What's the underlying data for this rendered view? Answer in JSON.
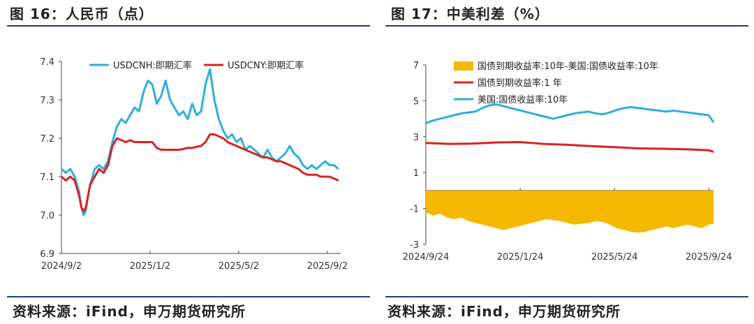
{
  "left": {
    "title": "图 16：人民币（点）",
    "source": "资料来源：iFind，申万期货研究所"
  },
  "right": {
    "title": "图 17：中美利差（%）",
    "source": "资料来源：iFind，申万期货研究所"
  },
  "chart_data": [
    {
      "type": "line",
      "title": "人民币（点）",
      "xlabel": "",
      "ylabel": "",
      "ylim": [
        6.9,
        7.4
      ],
      "yticks": [
        6.9,
        7.0,
        7.1,
        7.2,
        7.3,
        7.4
      ],
      "ytick_labels": [
        "6.9",
        "7.0",
        "7.1",
        "7.2",
        "7.3",
        "7.4"
      ],
      "xlim": [
        0,
        12.6
      ],
      "xticks": [
        0,
        4,
        8,
        12
      ],
      "xtick_labels": [
        "2024/9/2",
        "2025/1/2",
        "2025/5/2",
        "2025/9/2"
      ],
      "legend": "top",
      "series": [
        {
          "name": "USDCNH:即期汇率",
          "color": "#2eaee0",
          "x": [
            0,
            0.2,
            0.4,
            0.6,
            0.8,
            0.9,
            1.0,
            1.1,
            1.2,
            1.3,
            1.5,
            1.7,
            1.9,
            2.1,
            2.3,
            2.5,
            2.7,
            2.9,
            3.1,
            3.3,
            3.5,
            3.7,
            3.9,
            4.1,
            4.3,
            4.5,
            4.7,
            4.9,
            5.1,
            5.3,
            5.5,
            5.7,
            5.9,
            6.1,
            6.3,
            6.5,
            6.7,
            6.9,
            7.1,
            7.3,
            7.5,
            7.7,
            7.9,
            8.1,
            8.3,
            8.5,
            8.7,
            8.9,
            9.1,
            9.3,
            9.5,
            9.7,
            9.9,
            10.1,
            10.3,
            10.5,
            10.7,
            10.9,
            11.1,
            11.3,
            11.5,
            11.7,
            11.9,
            12.1,
            12.3,
            12.5
          ],
          "values": [
            7.12,
            7.11,
            7.12,
            7.1,
            7.06,
            7.02,
            7.0,
            7.01,
            7.05,
            7.08,
            7.12,
            7.13,
            7.12,
            7.14,
            7.19,
            7.23,
            7.25,
            7.24,
            7.26,
            7.28,
            7.27,
            7.32,
            7.35,
            7.34,
            7.29,
            7.31,
            7.35,
            7.3,
            7.28,
            7.26,
            7.27,
            7.25,
            7.29,
            7.26,
            7.27,
            7.34,
            7.38,
            7.3,
            7.25,
            7.22,
            7.2,
            7.21,
            7.19,
            7.2,
            7.17,
            7.18,
            7.17,
            7.16,
            7.15,
            7.17,
            7.15,
            7.14,
            7.15,
            7.16,
            7.18,
            7.16,
            7.15,
            7.13,
            7.12,
            7.13,
            7.12,
            7.13,
            7.14,
            7.13,
            7.13,
            7.12
          ]
        },
        {
          "name": "USDCNY:即期汇率",
          "color": "#d8231c",
          "x": [
            0,
            0.2,
            0.4,
            0.6,
            0.8,
            0.9,
            1.0,
            1.1,
            1.2,
            1.3,
            1.5,
            1.7,
            1.9,
            2.1,
            2.3,
            2.5,
            2.7,
            2.9,
            3.1,
            3.3,
            3.5,
            3.7,
            3.9,
            4.1,
            4.3,
            4.5,
            4.7,
            4.9,
            5.1,
            5.3,
            5.5,
            5.7,
            5.9,
            6.1,
            6.3,
            6.5,
            6.7,
            6.9,
            7.1,
            7.3,
            7.5,
            7.7,
            7.9,
            8.1,
            8.3,
            8.5,
            8.7,
            8.9,
            9.1,
            9.3,
            9.5,
            9.7,
            9.9,
            10.1,
            10.3,
            10.5,
            10.7,
            10.9,
            11.1,
            11.3,
            11.5,
            11.7,
            11.9,
            12.1,
            12.3,
            12.5
          ],
          "values": [
            7.1,
            7.09,
            7.1,
            7.09,
            7.05,
            7.02,
            7.01,
            7.02,
            7.05,
            7.08,
            7.1,
            7.12,
            7.11,
            7.13,
            7.18,
            7.2,
            7.195,
            7.19,
            7.195,
            7.19,
            7.19,
            7.19,
            7.19,
            7.19,
            7.175,
            7.17,
            7.17,
            7.17,
            7.17,
            7.17,
            7.172,
            7.175,
            7.175,
            7.178,
            7.18,
            7.19,
            7.21,
            7.21,
            7.205,
            7.2,
            7.19,
            7.185,
            7.18,
            7.175,
            7.17,
            7.165,
            7.16,
            7.155,
            7.15,
            7.15,
            7.145,
            7.14,
            7.14,
            7.135,
            7.13,
            7.125,
            7.12,
            7.11,
            7.105,
            7.105,
            7.105,
            7.1,
            7.1,
            7.1,
            7.095,
            7.09
          ]
        }
      ]
    },
    {
      "type": "line",
      "title": "中美利差（%）",
      "xlabel": "",
      "ylabel": "",
      "ylim": [
        -3,
        7
      ],
      "yticks": [
        -3,
        -1,
        1,
        3,
        5,
        7
      ],
      "ytick_labels": [
        "-3",
        "-1",
        "1",
        "3",
        "5",
        "7"
      ],
      "xlim": [
        0,
        12.2
      ],
      "xticks": [
        0,
        4,
        8,
        12
      ],
      "xtick_labels": [
        "2024/9/24",
        "2025/1/24",
        "2025/5/24",
        "2025/9/24"
      ],
      "legend": "top-left",
      "series": [
        {
          "name": "国债到期收益率:10年-美国:国债收益率:10年",
          "kind": "area",
          "color": "#f5b800",
          "x": [
            0,
            0.3,
            0.6,
            0.9,
            1.2,
            1.5,
            1.8,
            2.1,
            2.4,
            2.7,
            3.0,
            3.3,
            3.6,
            3.9,
            4.2,
            4.5,
            4.8,
            5.1,
            5.4,
            5.7,
            6.0,
            6.3,
            6.6,
            6.9,
            7.2,
            7.5,
            7.8,
            8.1,
            8.4,
            8.7,
            9.0,
            9.3,
            9.6,
            9.9,
            10.2,
            10.5,
            10.8,
            11.1,
            11.4,
            11.7,
            12.0,
            12.2
          ],
          "values": [
            -1.2,
            -1.4,
            -1.3,
            -1.5,
            -1.6,
            -1.5,
            -1.7,
            -1.8,
            -1.9,
            -2.0,
            -2.1,
            -2.2,
            -2.1,
            -2.0,
            -1.9,
            -1.8,
            -1.7,
            -1.6,
            -1.65,
            -1.7,
            -1.8,
            -1.9,
            -1.85,
            -1.8,
            -1.7,
            -1.75,
            -1.9,
            -2.1,
            -2.2,
            -2.3,
            -2.35,
            -2.3,
            -2.2,
            -2.1,
            -2.0,
            -2.1,
            -2.0,
            -1.9,
            -2.0,
            -2.1,
            -1.9,
            -1.85
          ]
        },
        {
          "name": "国债到期收益率:1 年",
          "color": "#d8231c",
          "x": [
            0,
            1,
            2,
            3,
            4,
            5,
            6,
            7,
            8,
            9,
            10,
            11,
            12,
            12.2
          ],
          "values": [
            2.65,
            2.6,
            2.62,
            2.68,
            2.7,
            2.6,
            2.55,
            2.48,
            2.42,
            2.35,
            2.33,
            2.3,
            2.25,
            2.15
          ]
        },
        {
          "name": "美国:国债收益率:10年",
          "color": "#2eaee0",
          "x": [
            0,
            0.3,
            0.6,
            0.9,
            1.2,
            1.5,
            1.8,
            2.1,
            2.4,
            2.7,
            3.0,
            3.3,
            3.6,
            3.9,
            4.2,
            4.5,
            4.8,
            5.1,
            5.4,
            5.7,
            6.0,
            6.3,
            6.6,
            6.9,
            7.2,
            7.5,
            7.8,
            8.1,
            8.4,
            8.7,
            9.0,
            9.3,
            9.6,
            9.9,
            10.2,
            10.5,
            10.8,
            11.1,
            11.4,
            11.7,
            12.0,
            12.2
          ],
          "values": [
            3.75,
            3.9,
            4.0,
            4.1,
            4.2,
            4.3,
            4.35,
            4.4,
            4.6,
            4.75,
            4.8,
            4.7,
            4.6,
            4.5,
            4.4,
            4.3,
            4.2,
            4.1,
            4.0,
            4.1,
            4.2,
            4.3,
            4.35,
            4.4,
            4.3,
            4.25,
            4.35,
            4.5,
            4.6,
            4.65,
            4.6,
            4.55,
            4.5,
            4.45,
            4.4,
            4.45,
            4.4,
            4.35,
            4.3,
            4.25,
            4.2,
            3.8
          ]
        }
      ]
    }
  ]
}
